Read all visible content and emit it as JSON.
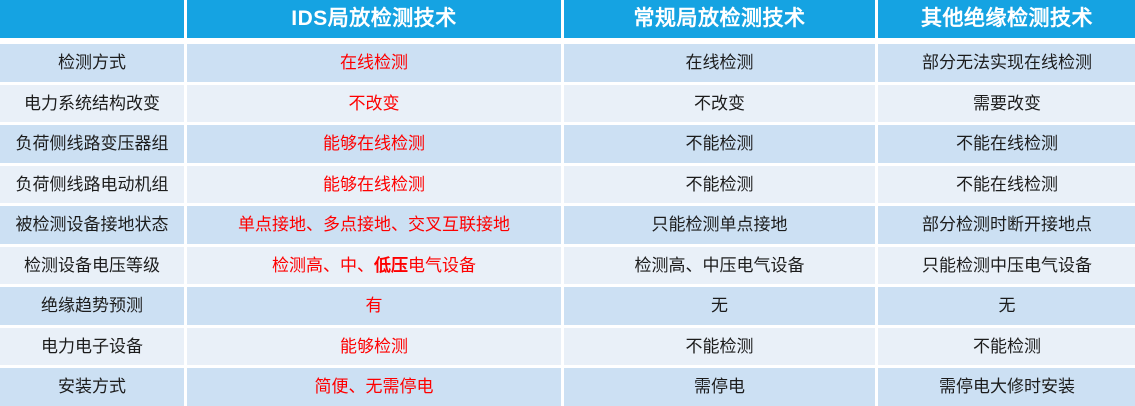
{
  "colors": {
    "header_bg": "#15A3E2",
    "row_odd": "#CCE0F3",
    "row_even": "#E9F0F8",
    "accent_red": "#FE0000",
    "text_dark": "#1C1C1C",
    "header_text": "#FFFFFF",
    "gutter": "#FFFFFF"
  },
  "table": {
    "header": {
      "corner": "",
      "columns": [
        "IDS局放检测技术",
        "常规局放检测技术",
        "其他绝缘检测技术"
      ]
    },
    "rows": [
      {
        "label": "检测方式",
        "ids": [
          {
            "text": "在线检测",
            "bold": false
          }
        ],
        "conventional": "在线检测",
        "other": "部分无法实现在线检测"
      },
      {
        "label": "电力系统结构改变",
        "ids": [
          {
            "text": "不改变",
            "bold": false
          }
        ],
        "conventional": "不改变",
        "other": "需要改变"
      },
      {
        "label": "负荷侧线路变压器组",
        "ids": [
          {
            "text": "能够在线检测",
            "bold": false
          }
        ],
        "conventional": "不能检测",
        "other": "不能在线检测"
      },
      {
        "label": "负荷侧线路电动机组",
        "ids": [
          {
            "text": "能够在线检测",
            "bold": false
          }
        ],
        "conventional": "不能检测",
        "other": "不能在线检测"
      },
      {
        "label": "被检测设备接地状态",
        "ids": [
          {
            "text": "单点接地、多点接地、交叉互联接地",
            "bold": false
          }
        ],
        "conventional": "只能检测单点接地",
        "other": "部分检测时断开接地点"
      },
      {
        "label": "检测设备电压等级",
        "ids": [
          {
            "text": "检测高、中、",
            "bold": false
          },
          {
            "text": "低压",
            "bold": true
          },
          {
            "text": "电气设备",
            "bold": false
          }
        ],
        "conventional": "检测高、中压电气设备",
        "other": "只能检测中压电气设备"
      },
      {
        "label": "绝缘趋势预测",
        "ids": [
          {
            "text": "有",
            "bold": false
          }
        ],
        "conventional": "无",
        "other": "无"
      },
      {
        "label": "电力电子设备",
        "ids": [
          {
            "text": "能够检测",
            "bold": false
          }
        ],
        "conventional": "不能检测",
        "other": "不能检测"
      },
      {
        "label": "安装方式",
        "ids": [
          {
            "text": "简便、无需停电",
            "bold": false
          }
        ],
        "conventional": "需停电",
        "other": "需停电大修时安装"
      }
    ]
  }
}
